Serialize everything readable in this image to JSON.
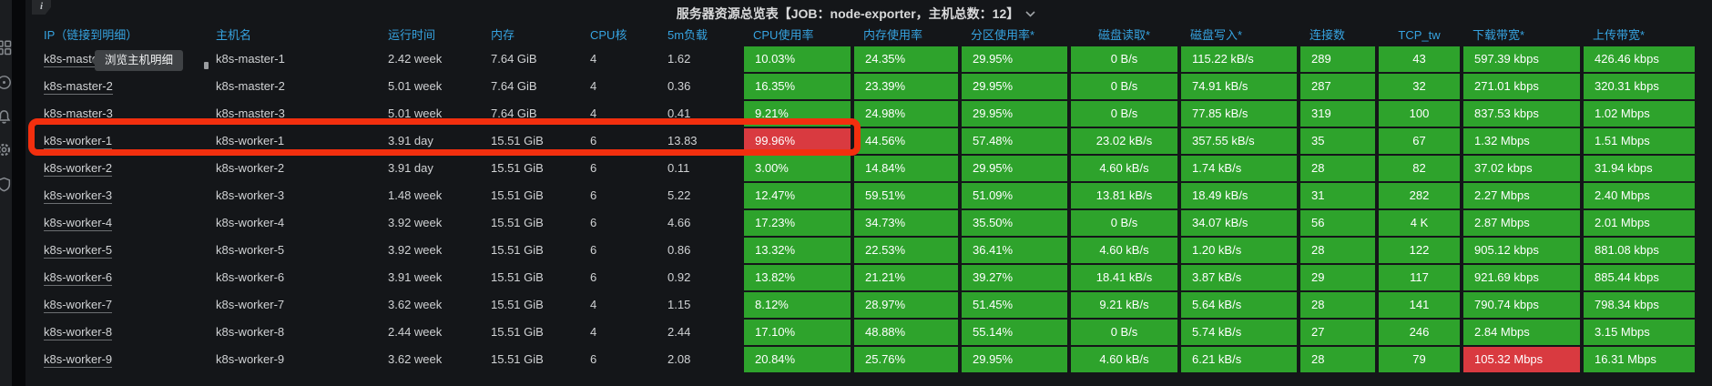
{
  "sidebar": {
    "icons": [
      {
        "name": "dashboard-grid-icon"
      },
      {
        "name": "explore-circle-icon"
      },
      {
        "name": "alerting-bell-icon"
      },
      {
        "name": "settings-gear-icon"
      },
      {
        "name": "security-shield-icon"
      }
    ]
  },
  "panel": {
    "title": "服务器资源总览表【JOB：node-exporter，主机总数：12】",
    "info_icon": "i",
    "tooltip_text": "浏览主机明细",
    "colors": {
      "ok_green": "#2ea32c",
      "alert_red": "#d93a40",
      "highlight_border": "#f22f0e",
      "header_blue": "#36a3e0",
      "panel_bg": "#141619"
    },
    "table": {
      "columns": [
        "IP（链接到明细）",
        "主机名",
        "运行时间",
        "内存",
        "CPU核",
        "5m负载",
        "CPU使用率",
        "内存使用率",
        "分区使用率*",
        "磁盘读取*",
        "磁盘写入*",
        "连接数",
        "TCP_tw",
        "下载带宽*",
        "上传带宽*"
      ],
      "rows": [
        {
          "ip": "k8s-master-1",
          "hostname": "k8s-master-1",
          "uptime": "2.42 week",
          "memory": "7.64 GiB",
          "cores": "4",
          "load": "1.62",
          "cpu": "10.03%",
          "mem": "24.35%",
          "part": "29.95%",
          "read": "0 B/s",
          "write": "115.22 kB/s",
          "conn": "289",
          "tcp": "43",
          "down": "597.39 kbps",
          "up": "426.46 kbps",
          "red": [],
          "highlighted": false
        },
        {
          "ip": "k8s-master-2",
          "hostname": "k8s-master-2",
          "uptime": "5.01 week",
          "memory": "7.64 GiB",
          "cores": "4",
          "load": "0.36",
          "cpu": "16.35%",
          "mem": "23.39%",
          "part": "29.95%",
          "read": "0 B/s",
          "write": "74.91 kB/s",
          "conn": "287",
          "tcp": "32",
          "down": "271.01 kbps",
          "up": "320.31 kbps",
          "red": [],
          "highlighted": false
        },
        {
          "ip": "k8s-master-3",
          "hostname": "k8s-master-3",
          "uptime": "5.01 week",
          "memory": "7.64 GiB",
          "cores": "4",
          "load": "0.41",
          "cpu": "9.21%",
          "mem": "24.98%",
          "part": "29.95%",
          "read": "0 B/s",
          "write": "77.85 kB/s",
          "conn": "319",
          "tcp": "100",
          "down": "837.53 kbps",
          "up": "1.02 Mbps",
          "red": [],
          "highlighted": false
        },
        {
          "ip": "k8s-worker-1",
          "hostname": "k8s-worker-1",
          "uptime": "3.91 day",
          "memory": "15.51 GiB",
          "cores": "6",
          "load": "13.83",
          "cpu": "99.96%",
          "mem": "44.56%",
          "part": "57.48%",
          "read": "23.02 kB/s",
          "write": "357.55 kB/s",
          "conn": "35",
          "tcp": "67",
          "down": "1.32 Mbps",
          "up": "1.51 Mbps",
          "red": [
            "cpu"
          ],
          "highlighted": true
        },
        {
          "ip": "k8s-worker-2",
          "hostname": "k8s-worker-2",
          "uptime": "3.91 day",
          "memory": "15.51 GiB",
          "cores": "6",
          "load": "0.11",
          "cpu": "3.00%",
          "mem": "14.84%",
          "part": "29.95%",
          "read": "4.60 kB/s",
          "write": "1.74 kB/s",
          "conn": "28",
          "tcp": "82",
          "down": "37.02 kbps",
          "up": "31.94 kbps",
          "red": [],
          "highlighted": false
        },
        {
          "ip": "k8s-worker-3",
          "hostname": "k8s-worker-3",
          "uptime": "1.48 week",
          "memory": "15.51 GiB",
          "cores": "6",
          "load": "5.22",
          "cpu": "12.47%",
          "mem": "59.51%",
          "part": "51.09%",
          "read": "13.81 kB/s",
          "write": "18.49 kB/s",
          "conn": "31",
          "tcp": "282",
          "down": "2.27 Mbps",
          "up": "2.40 Mbps",
          "red": [],
          "highlighted": false
        },
        {
          "ip": "k8s-worker-4",
          "hostname": "k8s-worker-4",
          "uptime": "3.92 week",
          "memory": "15.51 GiB",
          "cores": "6",
          "load": "4.66",
          "cpu": "17.23%",
          "mem": "34.73%",
          "part": "35.50%",
          "read": "0 B/s",
          "write": "34.07 kB/s",
          "conn": "56",
          "tcp": "4 K",
          "down": "2.87 Mbps",
          "up": "2.01 Mbps",
          "red": [],
          "highlighted": false
        },
        {
          "ip": "k8s-worker-5",
          "hostname": "k8s-worker-5",
          "uptime": "3.92 week",
          "memory": "15.51 GiB",
          "cores": "6",
          "load": "0.86",
          "cpu": "13.32%",
          "mem": "22.53%",
          "part": "36.41%",
          "read": "4.60 kB/s",
          "write": "1.20 kB/s",
          "conn": "28",
          "tcp": "122",
          "down": "905.12 kbps",
          "up": "881.08 kbps",
          "red": [],
          "highlighted": false
        },
        {
          "ip": "k8s-worker-6",
          "hostname": "k8s-worker-6",
          "uptime": "3.91 week",
          "memory": "15.51 GiB",
          "cores": "6",
          "load": "0.92",
          "cpu": "13.82%",
          "mem": "21.21%",
          "part": "39.27%",
          "read": "18.41 kB/s",
          "write": "3.87 kB/s",
          "conn": "29",
          "tcp": "117",
          "down": "921.69 kbps",
          "up": "885.44 kbps",
          "red": [],
          "highlighted": false
        },
        {
          "ip": "k8s-worker-7",
          "hostname": "k8s-worker-7",
          "uptime": "3.62 week",
          "memory": "15.51 GiB",
          "cores": "4",
          "load": "1.15",
          "cpu": "8.12%",
          "mem": "28.97%",
          "part": "51.45%",
          "read": "9.21 kB/s",
          "write": "5.64 kB/s",
          "conn": "28",
          "tcp": "141",
          "down": "790.74 kbps",
          "up": "798.34 kbps",
          "red": [],
          "highlighted": false
        },
        {
          "ip": "k8s-worker-8",
          "hostname": "k8s-worker-8",
          "uptime": "2.44 week",
          "memory": "15.51 GiB",
          "cores": "4",
          "load": "2.44",
          "cpu": "17.10%",
          "mem": "48.88%",
          "part": "55.14%",
          "read": "0 B/s",
          "write": "5.74 kB/s",
          "conn": "27",
          "tcp": "246",
          "down": "2.84 Mbps",
          "up": "3.15 Mbps",
          "red": [],
          "highlighted": false
        },
        {
          "ip": "k8s-worker-9",
          "hostname": "k8s-worker-9",
          "uptime": "3.62 week",
          "memory": "15.51 GiB",
          "cores": "6",
          "load": "2.08",
          "cpu": "20.84%",
          "mem": "25.76%",
          "part": "29.95%",
          "read": "4.60 kB/s",
          "write": "6.21 kB/s",
          "conn": "28",
          "tcp": "79",
          "down": "105.32 Mbps",
          "up": "16.31 Mbps",
          "red": [
            "down"
          ],
          "highlighted": false
        }
      ]
    }
  }
}
